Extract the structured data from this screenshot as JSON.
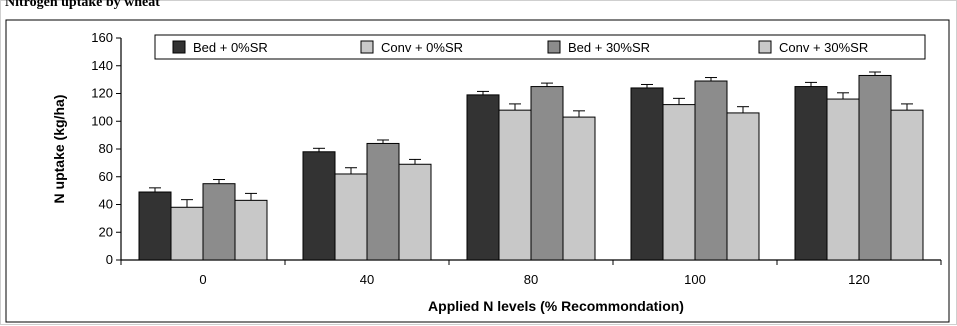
{
  "caption": "Nitrogen uptake by wheat",
  "chart_data": {
    "type": "bar",
    "categories": [
      "0",
      "40",
      "80",
      "100",
      "120"
    ],
    "series": [
      {
        "name": "Bed + 0%SR",
        "color": "#333333",
        "values": [
          49,
          78,
          119,
          124,
          125
        ],
        "errors": [
          3,
          2.5,
          2.5,
          2.5,
          3
        ]
      },
      {
        "name": "Conv + 0%SR",
        "color": "#c8c8c8",
        "values": [
          38,
          62,
          108,
          112,
          116
        ],
        "errors": [
          5.5,
          4.5,
          4.5,
          4.5,
          4.5
        ]
      },
      {
        "name": "Bed + 30%SR",
        "color": "#8c8c8c",
        "values": [
          55,
          84,
          125,
          129,
          133
        ],
        "errors": [
          3,
          2.5,
          2.5,
          2.5,
          2.5
        ]
      },
      {
        "name": "Conv + 30%SR",
        "color": "#c8c8c8",
        "values": [
          43,
          69,
          103,
          106,
          108
        ],
        "errors": [
          5,
          3.5,
          4.5,
          4.5,
          4.5
        ]
      }
    ],
    "xlabel": "Applied N levels (% Recommondation)",
    "ylabel": "N uptake (kg/ha)",
    "ylim": [
      0,
      160
    ],
    "yticks": [
      "0",
      "20",
      "40",
      "60",
      "80",
      "100",
      "120",
      "140",
      "160"
    ],
    "legend_position": "top",
    "grid": false
  }
}
